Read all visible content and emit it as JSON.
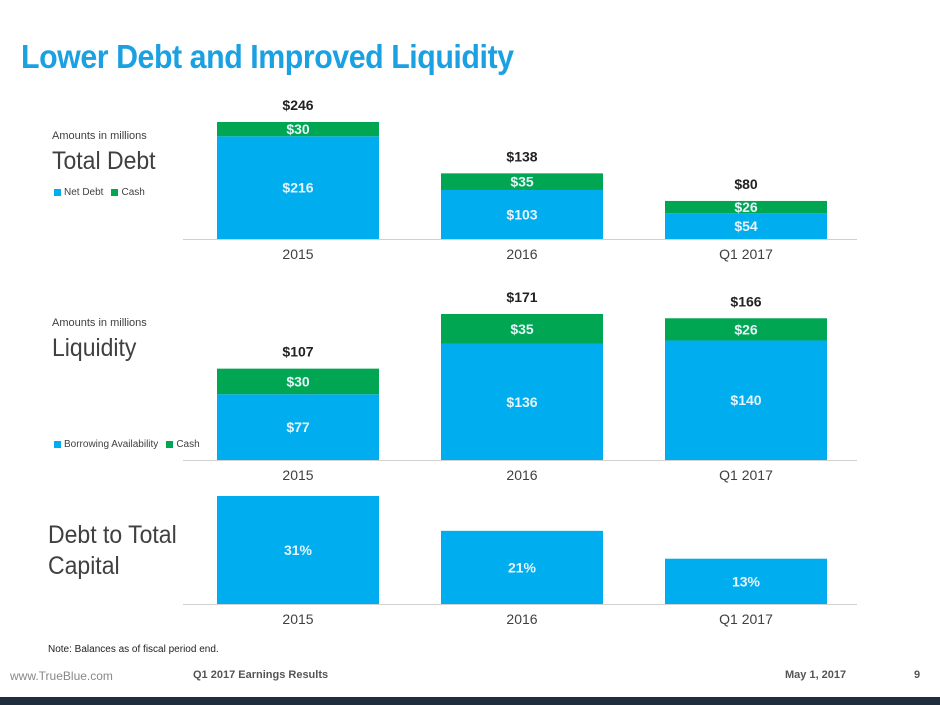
{
  "title": "Lower Debt and Improved Liquidity",
  "colors": {
    "primary": "#00aeef",
    "secondary": "#00a651",
    "title": "#1ba1e2",
    "footer_bar": "#1f2d3d"
  },
  "sections": {
    "debt": {
      "note": "Amounts in millions",
      "title": "Total Debt"
    },
    "liquidity": {
      "note": "Amounts in millions",
      "title": "Liquidity"
    },
    "capital": {
      "title_line1": "Debt to Total",
      "title_line2": "Capital"
    }
  },
  "chart_data": [
    {
      "type": "bar",
      "stacked": true,
      "categories": [
        "2015",
        "2016",
        "Q1 2017"
      ],
      "series": [
        {
          "name": "Net Debt",
          "values": [
            216,
            103,
            54
          ],
          "labels": [
            "$216",
            "$103",
            "$54"
          ]
        },
        {
          "name": "Cash",
          "values": [
            30,
            35,
            26
          ],
          "labels": [
            "$30",
            "$35",
            "$26"
          ]
        }
      ],
      "totals": [
        "$246",
        "$138",
        "$80"
      ],
      "ylim": [
        0,
        246
      ],
      "legend": "left"
    },
    {
      "type": "bar",
      "stacked": true,
      "categories": [
        "2015",
        "2016",
        "Q1 2017"
      ],
      "series": [
        {
          "name": "Borrowing Availability",
          "values": [
            77,
            136,
            140
          ],
          "labels": [
            "$77",
            "$136",
            "$140"
          ]
        },
        {
          "name": "Cash",
          "values": [
            30,
            35,
            26
          ],
          "labels": [
            "$30",
            "$35",
            "$26"
          ]
        }
      ],
      "totals": [
        "$107",
        "$171",
        "$166"
      ],
      "ylim": [
        0,
        171
      ],
      "legend": "left"
    },
    {
      "type": "bar",
      "stacked": false,
      "categories": [
        "2015",
        "2016",
        "Q1 2017"
      ],
      "series": [
        {
          "values": [
            31,
            21,
            13
          ],
          "labels": [
            "31%",
            "21%",
            "13%"
          ]
        }
      ],
      "ylim": [
        0,
        31
      ]
    }
  ],
  "footnote": "Note: Balances as of fiscal period end.",
  "footer": {
    "url": "www.TrueBlue.com",
    "center": "Q1 2017 Earnings Results",
    "date": "May 1, 2017",
    "page": "9"
  }
}
